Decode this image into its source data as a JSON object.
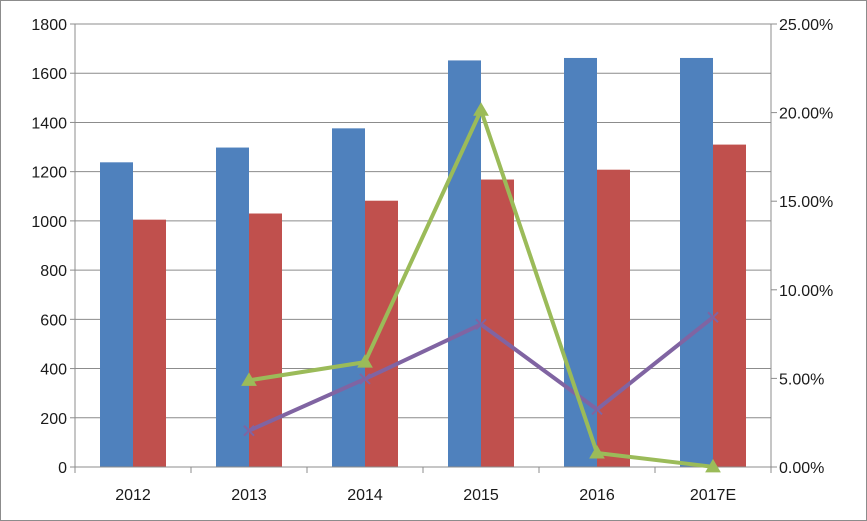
{
  "chart_data": {
    "type": "bar",
    "categories": [
      "2012",
      "2013",
      "2014",
      "2015",
      "2016",
      "2017E"
    ],
    "bar_series": [
      {
        "values": [
          1238,
          1298,
          1376,
          1652,
          1662,
          1662
        ],
        "color": "#4f81bd"
      },
      {
        "values": [
          1005,
          1030,
          1082,
          1168,
          1208,
          1310
        ],
        "color": "#c0504d"
      }
    ],
    "line_series": [
      {
        "values": [
          null,
          0.0205,
          0.0497,
          0.0805,
          0.0325,
          0.0845
        ],
        "color": "#8064a2",
        "marker": "x"
      },
      {
        "values": [
          null,
          0.0489,
          0.0592,
          0.2013,
          0.0079,
          0.0001
        ],
        "color": "#9bbb59",
        "marker": "triangle"
      }
    ],
    "y_left": {
      "ylim": [
        0,
        1800
      ],
      "ticks": [
        "0",
        "200",
        "400",
        "600",
        "800",
        "1000",
        "1200",
        "1400",
        "1600",
        "1800"
      ]
    },
    "y_right": {
      "ylim": [
        0,
        0.25
      ],
      "ticks": [
        "0.00%",
        "5.00%",
        "10.00%",
        "15.00%",
        "20.00%",
        "25.00%"
      ]
    },
    "grid": "horizontal",
    "legend": "none"
  }
}
